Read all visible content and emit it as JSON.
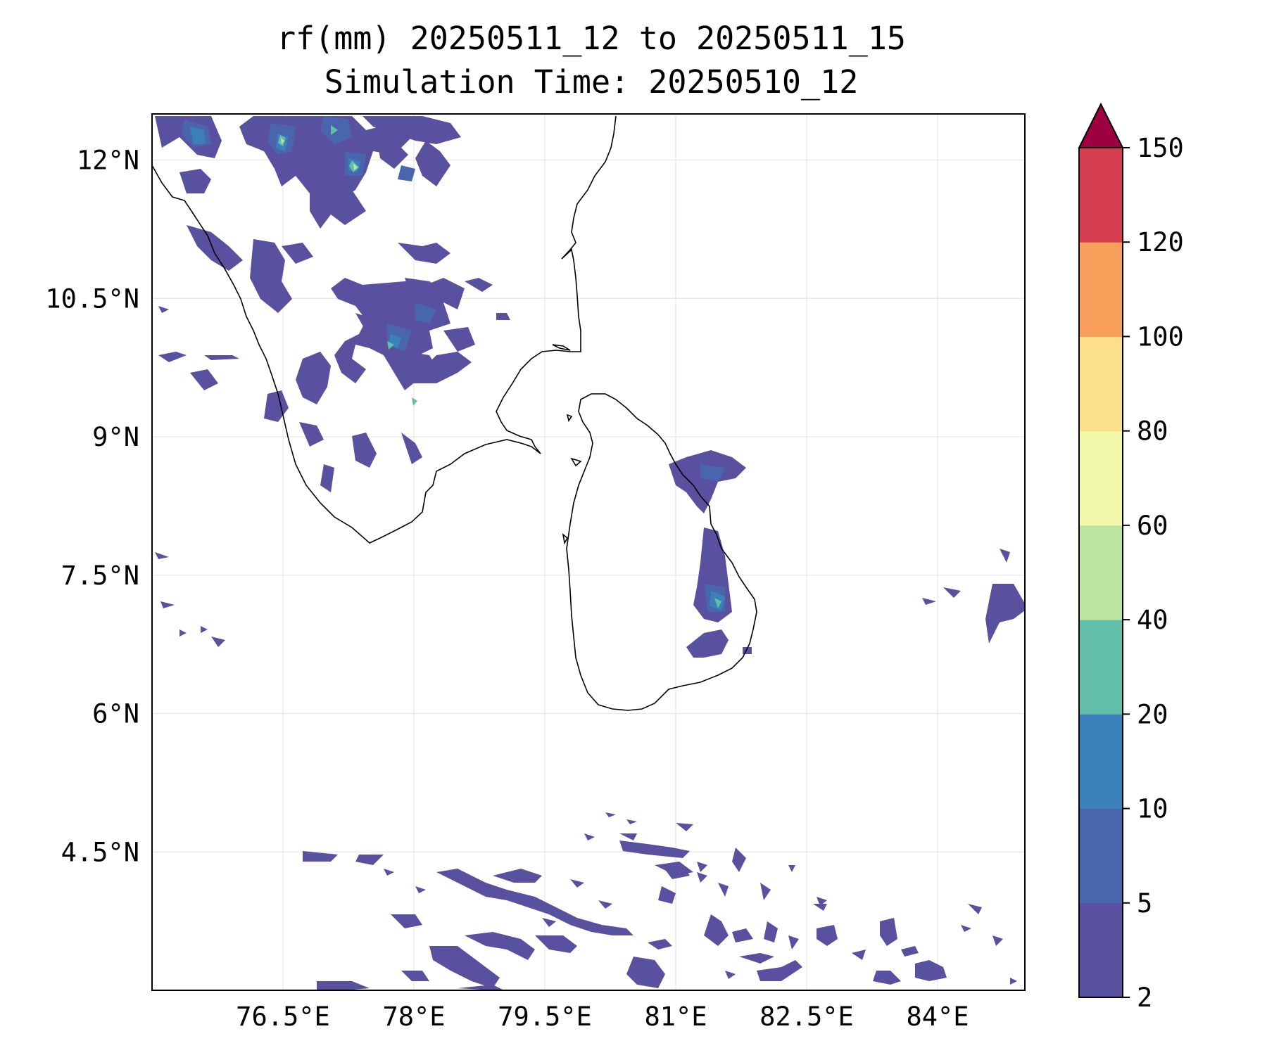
{
  "title": {
    "line1": "rf(mm) 20250511_12 to 20250511_15",
    "line2": "Simulation Time: 20250510_12"
  },
  "map": {
    "extent": {
      "lon_min": 75.0,
      "lon_max": 85.0,
      "lat_min": 3.0,
      "lat_max": 12.5
    },
    "x_ticks": [
      {
        "value": 76.5,
        "label": "76.5°E"
      },
      {
        "value": 78.0,
        "label": "78°E"
      },
      {
        "value": 79.5,
        "label": "79.5°E"
      },
      {
        "value": 81.0,
        "label": "81°E"
      },
      {
        "value": 82.5,
        "label": "82.5°E"
      },
      {
        "value": 84.0,
        "label": "84°E"
      }
    ],
    "y_ticks": [
      {
        "value": 12.0,
        "label": "12°N"
      },
      {
        "value": 10.5,
        "label": "10.5°N"
      },
      {
        "value": 9.0,
        "label": "9°N"
      },
      {
        "value": 7.5,
        "label": "7.5°N"
      },
      {
        "value": 6.0,
        "label": "6°N"
      },
      {
        "value": 4.5,
        "label": "4.5°N"
      }
    ],
    "gridlines": true,
    "coastline_color": "#000000"
  },
  "colorbar": {
    "extend": "max",
    "levels": [
      {
        "from": 2,
        "to": 5,
        "color": "#5a50a0"
      },
      {
        "from": 5,
        "to": 10,
        "color": "#4965ae"
      },
      {
        "from": 10,
        "to": 20,
        "color": "#3b80ba"
      },
      {
        "from": 20,
        "to": 40,
        "color": "#62bda9"
      },
      {
        "from": 40,
        "to": 60,
        "color": "#bde3a0"
      },
      {
        "from": 60,
        "to": 80,
        "color": "#f2f9ad"
      },
      {
        "from": 80,
        "to": 100,
        "color": "#fbdf8b"
      },
      {
        "from": 100,
        "to": 120,
        "color": "#f99f5c"
      },
      {
        "from": 120,
        "to": 150,
        "color": "#d63f50"
      }
    ],
    "overflow_color": "#9e0142",
    "tick_labels": [
      "2",
      "5",
      "10",
      "20",
      "40",
      "60",
      "80",
      "100",
      "120",
      "150"
    ]
  }
}
